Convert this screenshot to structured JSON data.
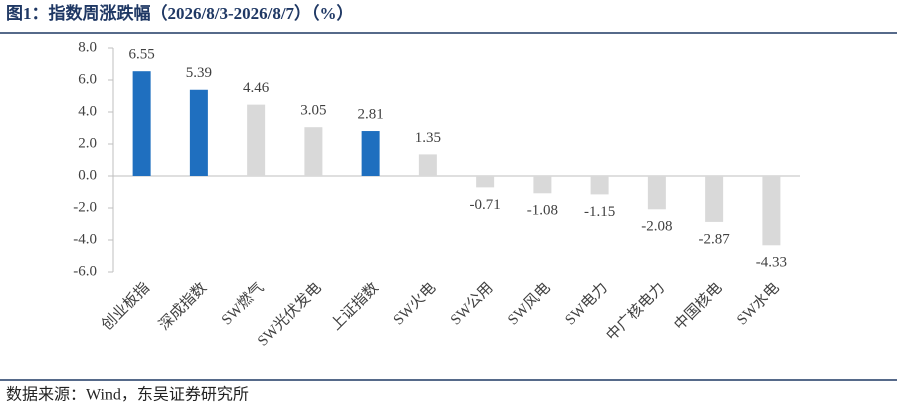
{
  "chart_data": {
    "type": "bar",
    "title": "图1：指数周涨跌幅（2026/8/3-2026/8/7）（%）",
    "categories": [
      "创业板指",
      "深成指数",
      "SW燃气",
      "SW光伏发电",
      "上证指数",
      "SW火电",
      "SW公用",
      "SW风电",
      "SW电力",
      "中广核电力",
      "中国核电",
      "SW水电"
    ],
    "values": [
      6.55,
      5.39,
      4.46,
      3.05,
      2.81,
      1.35,
      -0.71,
      -1.08,
      -1.15,
      -2.08,
      -2.87,
      -4.33
    ],
    "colors": [
      "#1f6fbf",
      "#1f6fbf",
      "#d9d9d9",
      "#d9d9d9",
      "#1f6fbf",
      "#d9d9d9",
      "#d9d9d9",
      "#d9d9d9",
      "#d9d9d9",
      "#d9d9d9",
      "#d9d9d9",
      "#d9d9d9"
    ],
    "ylim": [
      -6,
      8
    ],
    "yticks": [
      {
        "value": 8,
        "label": "8.0"
      },
      {
        "value": 6,
        "label": "6.0"
      },
      {
        "value": 4,
        "label": "4.0"
      },
      {
        "value": 2,
        "label": "2.0"
      },
      {
        "value": 0,
        "label": "0.0"
      },
      {
        "value": -2,
        "label": "-2.0"
      },
      {
        "value": -4,
        "label": "-4.0"
      },
      {
        "value": -6,
        "label": "-6.0"
      }
    ],
    "grid": false
  },
  "source": "数据来源：Wind，东吴证券研究所"
}
